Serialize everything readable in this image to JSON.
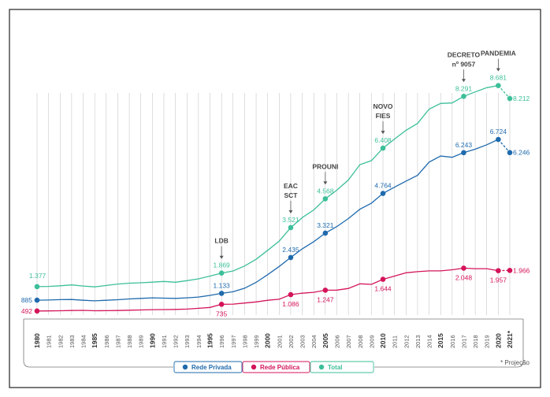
{
  "chart_data": {
    "type": "line",
    "x": [
      "1980",
      "1981",
      "1982",
      "1983",
      "1984",
      "1985",
      "1986",
      "1987",
      "1988",
      "1989",
      "1990",
      "1991",
      "1992",
      "1993",
      "1994",
      "1995",
      "1996",
      "1997",
      "1998",
      "1999",
      "2000",
      "2001",
      "2002",
      "2003",
      "2004",
      "2005",
      "2006",
      "2007",
      "2008",
      "2009",
      "2010",
      "2011",
      "2012",
      "2013",
      "2014",
      "2015",
      "2016",
      "2017",
      "2018",
      "2019",
      "2020",
      "2021*"
    ],
    "bold_ticks": [
      "1980",
      "1985",
      "1990",
      "1995",
      "2000",
      "2005",
      "2010",
      "2015",
      "2020",
      "2021*"
    ],
    "series": [
      {
        "name": "Total",
        "color": "#3dbf9a",
        "values": [
          1377,
          1386,
          1407,
          1438,
          1398,
          1367,
          1418,
          1470,
          1503,
          1518,
          1540,
          1565,
          1536,
          1594,
          1661,
          1760,
          1869,
          1946,
          2125,
          2369,
          2695,
          3030,
          3521,
          3887,
          4164,
          4568,
          4883,
          5250,
          5808,
          5954,
          6408,
          6740,
          7058,
          7306,
          7828,
          8033,
          8049,
          8291,
          8451,
          8604,
          8681,
          8212
        ],
        "projected_from_index": 40,
        "labels": [
          {
            "i": 0,
            "text": "1.377"
          },
          {
            "i": 16,
            "text": "1.869"
          },
          {
            "i": 22,
            "text": "3.521"
          },
          {
            "i": 25,
            "text": "4.568"
          },
          {
            "i": 30,
            "text": "6.408"
          },
          {
            "i": 37,
            "text": "8.291"
          },
          {
            "i": 40,
            "text": "8.681"
          },
          {
            "i": 41,
            "text": "8.212"
          }
        ]
      },
      {
        "name": "Rede Privada",
        "color": "#1f6aad",
        "values": [
          885,
          890,
          903,
          910,
          880,
          860,
          880,
          900,
          930,
          950,
          970,
          960,
          950,
          970,
          1000,
          1060,
          1133,
          1190,
          1320,
          1530,
          1810,
          2110,
          2435,
          2750,
          3010,
          3321,
          3560,
          3850,
          4190,
          4410,
          4764,
          4990,
          5210,
          5420,
          5900,
          6120,
          6075,
          6243,
          6370,
          6530,
          6724,
          6246
        ],
        "projected_from_index": 40,
        "labels": [
          {
            "i": 0,
            "text": "885"
          },
          {
            "i": 16,
            "text": "1.133"
          },
          {
            "i": 22,
            "text": "2.435"
          },
          {
            "i": 25,
            "text": "3.321"
          },
          {
            "i": 30,
            "text": "4.764"
          },
          {
            "i": 37,
            "text": "6.243"
          },
          {
            "i": 40,
            "text": "6.724"
          },
          {
            "i": 41,
            "text": "6.246"
          }
        ]
      },
      {
        "name": "Rede Pública",
        "color": "#d4145a",
        "values": [
          492,
          495,
          500,
          510,
          515,
          500,
          505,
          510,
          520,
          530,
          540,
          545,
          550,
          560,
          590,
          620,
          735,
          740,
          780,
          820,
          880,
          920,
          1086,
          1140,
          1170,
          1247,
          1250,
          1310,
          1480,
          1460,
          1644,
          1760,
          1880,
          1920,
          1950,
          1950,
          1990,
          2048,
          2030,
          2030,
          1957,
          1966
        ],
        "projected_from_index": 40,
        "labels": [
          {
            "i": 0,
            "text": "492"
          },
          {
            "i": 16,
            "text": "735"
          },
          {
            "i": 22,
            "text": "1.086"
          },
          {
            "i": 25,
            "text": "1.247"
          },
          {
            "i": 30,
            "text": "1.644"
          },
          {
            "i": 37,
            "text": "2.048"
          },
          {
            "i": 40,
            "text": "1.957"
          },
          {
            "i": 41,
            "text": "1.966"
          }
        ]
      }
    ],
    "annotations": [
      {
        "i": 16,
        "lines": [
          "LDB"
        ]
      },
      {
        "i": 22,
        "lines": [
          "EAC",
          "SCT"
        ]
      },
      {
        "i": 25,
        "lines": [
          "PROUNI"
        ]
      },
      {
        "i": 30,
        "lines": [
          "NOVO",
          "FIES"
        ]
      },
      {
        "i": 37,
        "lines": [
          "DECRETO",
          "nº 9057"
        ]
      },
      {
        "i": 40,
        "lines": [
          "PANDEMIA"
        ]
      }
    ],
    "legend": [
      {
        "name": "Rede Privada",
        "color": "#1f6aad"
      },
      {
        "name": "Rede Pública",
        "color": "#d4145a"
      },
      {
        "name": "Total",
        "color": "#3dbf9a"
      }
    ],
    "footnote": "* Projeção",
    "grid": "vertical",
    "legend_position": "bottom-center"
  }
}
